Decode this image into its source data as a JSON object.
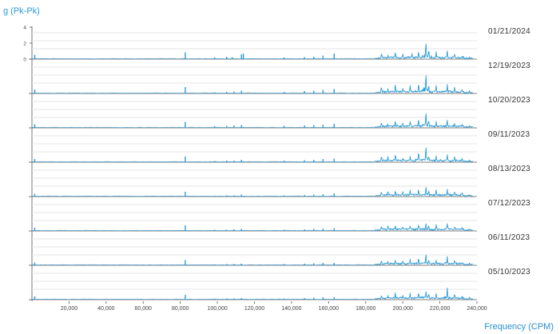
{
  "chart_data": {
    "type": "line",
    "ylabel": "g (Pk-Pk)",
    "xlabel": "Frequency (CPM)",
    "xlim": [
      0,
      240000
    ],
    "ylim": [
      0,
      4
    ],
    "yticks": [
      "4",
      "2",
      "0"
    ],
    "xticks": [
      "20,000",
      "40,000",
      "60,000",
      "80,000",
      "100,000",
      "120,000",
      "140,000",
      "160,000",
      "180,000",
      "200,000",
      "220,000",
      "240,000"
    ],
    "grid": true,
    "series_color": "#2b9bd8",
    "series": [
      {
        "name": "01/21/2024",
        "values": [
          [
            1500,
            0.55
          ],
          [
            82700,
            0.85
          ],
          [
            98500,
            0.2
          ],
          [
            105000,
            0.3
          ],
          [
            108000,
            0.25
          ],
          [
            113000,
            0.6
          ],
          [
            114000,
            0.7
          ],
          [
            136000,
            0.2
          ],
          [
            147000,
            0.25
          ],
          [
            152000,
            0.3
          ],
          [
            157000,
            0.45
          ],
          [
            163000,
            0.7
          ],
          [
            188500,
            0.7
          ],
          [
            192000,
            0.4
          ],
          [
            196000,
            0.85
          ],
          [
            200000,
            0.55
          ],
          [
            205000,
            0.6
          ],
          [
            208500,
            1.0
          ],
          [
            212500,
            2.1
          ],
          [
            214000,
            1.2
          ],
          [
            218000,
            0.8
          ],
          [
            224000,
            0.95
          ],
          [
            228000,
            0.7
          ],
          [
            232000,
            0.4
          ],
          [
            236000,
            0.3
          ]
        ]
      },
      {
        "name": "12/19/2023",
        "values": [
          [
            1500,
            0.5
          ],
          [
            82700,
            0.8
          ],
          [
            98500,
            0.15
          ],
          [
            105000,
            0.2
          ],
          [
            109000,
            0.25
          ],
          [
            113000,
            0.35
          ],
          [
            136000,
            0.2
          ],
          [
            147000,
            0.3
          ],
          [
            152000,
            0.35
          ],
          [
            157000,
            0.45
          ],
          [
            163000,
            0.55
          ],
          [
            188500,
            0.8
          ],
          [
            192000,
            0.5
          ],
          [
            196000,
            1.1
          ],
          [
            200000,
            0.7
          ],
          [
            204000,
            0.9
          ],
          [
            208500,
            1.25
          ],
          [
            212500,
            2.6
          ],
          [
            214000,
            1.1
          ],
          [
            218000,
            0.9
          ],
          [
            224000,
            1.0
          ],
          [
            228000,
            0.8
          ],
          [
            232000,
            0.45
          ],
          [
            236000,
            0.4
          ]
        ]
      },
      {
        "name": "10/20/2023",
        "values": [
          [
            1500,
            0.45
          ],
          [
            82700,
            0.75
          ],
          [
            98500,
            0.2
          ],
          [
            105000,
            0.25
          ],
          [
            109000,
            0.3
          ],
          [
            113000,
            0.35
          ],
          [
            136000,
            0.25
          ],
          [
            147000,
            0.3
          ],
          [
            152000,
            0.35
          ],
          [
            157000,
            0.4
          ],
          [
            163000,
            0.5
          ],
          [
            188500,
            0.65
          ],
          [
            192000,
            0.45
          ],
          [
            196000,
            0.9
          ],
          [
            200000,
            0.6
          ],
          [
            204000,
            0.7
          ],
          [
            208500,
            1.1
          ],
          [
            212500,
            1.9
          ],
          [
            214000,
            1.0
          ],
          [
            218000,
            0.8
          ],
          [
            224000,
            0.95
          ],
          [
            228000,
            0.6
          ],
          [
            232000,
            0.4
          ],
          [
            236000,
            0.3
          ]
        ]
      },
      {
        "name": "09/11/2023",
        "values": [
          [
            1500,
            0.4
          ],
          [
            82700,
            0.7
          ],
          [
            98500,
            0.15
          ],
          [
            105000,
            0.2
          ],
          [
            109000,
            0.2
          ],
          [
            113000,
            0.3
          ],
          [
            136000,
            0.2
          ],
          [
            147000,
            0.25
          ],
          [
            152000,
            0.3
          ],
          [
            157000,
            0.4
          ],
          [
            163000,
            0.45
          ],
          [
            188500,
            0.7
          ],
          [
            192000,
            0.6
          ],
          [
            196000,
            0.95
          ],
          [
            200000,
            0.5
          ],
          [
            204000,
            0.6
          ],
          [
            208500,
            1.3
          ],
          [
            212500,
            2.0
          ],
          [
            214000,
            0.9
          ],
          [
            218000,
            0.7
          ],
          [
            224000,
            0.85
          ],
          [
            228000,
            0.65
          ],
          [
            232000,
            0.4
          ],
          [
            236000,
            0.3
          ]
        ]
      },
      {
        "name": "08/13/2023",
        "values": [
          [
            1500,
            0.35
          ],
          [
            82700,
            0.6
          ],
          [
            98500,
            0.1
          ],
          [
            105000,
            0.15
          ],
          [
            109000,
            0.15
          ],
          [
            113000,
            0.25
          ],
          [
            136000,
            0.15
          ],
          [
            147000,
            0.2
          ],
          [
            152000,
            0.25
          ],
          [
            157000,
            0.3
          ],
          [
            163000,
            0.4
          ],
          [
            188500,
            0.6
          ],
          [
            192000,
            0.55
          ],
          [
            196000,
            0.7
          ],
          [
            200000,
            0.65
          ],
          [
            204000,
            0.75
          ],
          [
            208500,
            0.9
          ],
          [
            212500,
            1.2
          ],
          [
            214000,
            0.8
          ],
          [
            218000,
            0.7
          ],
          [
            224000,
            0.8
          ],
          [
            228000,
            0.55
          ],
          [
            232000,
            0.35
          ],
          [
            236000,
            0.25
          ]
        ]
      },
      {
        "name": "07/12/2023",
        "values": [
          [
            1500,
            0.4
          ],
          [
            82700,
            0.7
          ],
          [
            98500,
            0.15
          ],
          [
            105000,
            0.15
          ],
          [
            109000,
            0.2
          ],
          [
            113000,
            0.25
          ],
          [
            136000,
            0.15
          ],
          [
            147000,
            0.2
          ],
          [
            152000,
            0.25
          ],
          [
            157000,
            0.3
          ],
          [
            163000,
            0.35
          ],
          [
            188500,
            0.55
          ],
          [
            192000,
            0.5
          ],
          [
            196000,
            0.65
          ],
          [
            200000,
            0.55
          ],
          [
            204000,
            0.6
          ],
          [
            208500,
            0.8
          ],
          [
            212500,
            0.95
          ],
          [
            214000,
            0.7
          ],
          [
            218000,
            0.65
          ],
          [
            224000,
            0.85
          ],
          [
            228000,
            0.5
          ],
          [
            232000,
            0.35
          ],
          [
            236000,
            0.25
          ]
        ]
      },
      {
        "name": "06/11/2023",
        "values": [
          [
            1500,
            0.35
          ],
          [
            82700,
            0.65
          ],
          [
            98500,
            0.1
          ],
          [
            105000,
            0.15
          ],
          [
            109000,
            0.15
          ],
          [
            113000,
            0.2
          ],
          [
            136000,
            0.15
          ],
          [
            147000,
            0.2
          ],
          [
            152000,
            0.25
          ],
          [
            157000,
            0.3
          ],
          [
            163000,
            0.3
          ],
          [
            188500,
            0.55
          ],
          [
            192000,
            0.45
          ],
          [
            196000,
            0.7
          ],
          [
            200000,
            0.5
          ],
          [
            204000,
            0.65
          ],
          [
            208500,
            1.0
          ],
          [
            212500,
            1.4
          ],
          [
            214000,
            0.75
          ],
          [
            218000,
            0.6
          ],
          [
            224000,
            1.0
          ],
          [
            228000,
            0.6
          ],
          [
            232000,
            0.35
          ],
          [
            236000,
            0.3
          ]
        ]
      },
      {
        "name": "05/10/2023",
        "values": [
          [
            1500,
            0.4
          ],
          [
            82700,
            0.6
          ],
          [
            98500,
            0.1
          ],
          [
            105000,
            0.15
          ],
          [
            109000,
            0.15
          ],
          [
            113000,
            0.2
          ],
          [
            136000,
            0.15
          ],
          [
            147000,
            0.2
          ],
          [
            152000,
            0.25
          ],
          [
            157000,
            0.3
          ],
          [
            163000,
            0.3
          ],
          [
            188500,
            0.6
          ],
          [
            192000,
            0.5
          ],
          [
            196000,
            0.85
          ],
          [
            200000,
            0.55
          ],
          [
            204000,
            0.7
          ],
          [
            208500,
            0.95
          ],
          [
            212500,
            1.1
          ],
          [
            214000,
            0.8
          ],
          [
            218000,
            0.65
          ],
          [
            224000,
            1.3
          ],
          [
            228000,
            0.7
          ],
          [
            232000,
            0.4
          ],
          [
            236000,
            0.35
          ]
        ]
      }
    ]
  }
}
